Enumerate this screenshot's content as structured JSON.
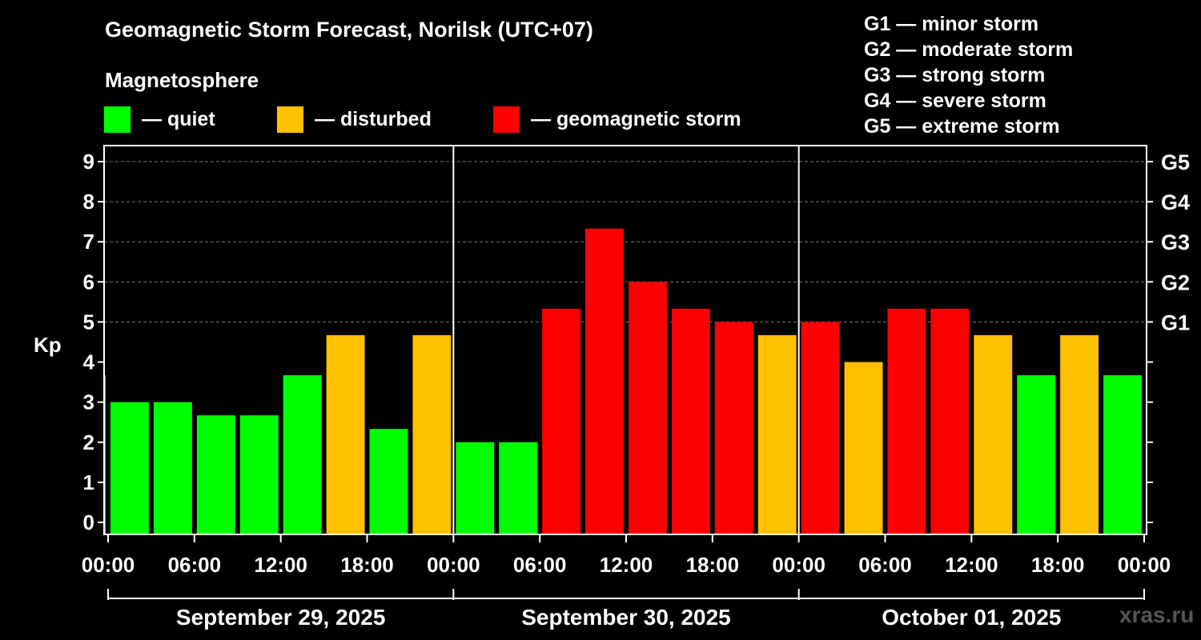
{
  "title": "Geomagnetic Storm Forecast, Norilsk (UTC+07)",
  "subtitle": "Magnetosphere",
  "legend": [
    {
      "label": "— quiet",
      "color": "#00ff00"
    },
    {
      "label": "— disturbed",
      "color": "#ffc000"
    },
    {
      "label": "— geomagnetic storm",
      "color": "#ff0000"
    }
  ],
  "g_scale": [
    "G1 — minor storm",
    "G2 — moderate storm",
    "G3 — strong storm",
    "G4 — severe storm",
    "G5 — extreme storm"
  ],
  "watermark": "xras.ru",
  "chart_data": {
    "type": "bar",
    "title": "Geomagnetic Storm Forecast, Norilsk (UTC+07)",
    "ylabel": "Kp",
    "ylim": [
      -0.3,
      9.4
    ],
    "y_ticks": [
      "0",
      "1",
      "2",
      "3",
      "4",
      "5",
      "6",
      "7",
      "8",
      "9"
    ],
    "right_axis_labels": [
      {
        "kp": 5,
        "label": "G1"
      },
      {
        "kp": 6,
        "label": "G2"
      },
      {
        "kp": 7,
        "label": "G3"
      },
      {
        "kp": 8,
        "label": "G4"
      },
      {
        "kp": 9,
        "label": "G5"
      }
    ],
    "x_range_hours": [
      0,
      72
    ],
    "x_tick_labels": [
      "00:00",
      "06:00",
      "12:00",
      "18:00",
      "00:00",
      "06:00",
      "12:00",
      "18:00",
      "00:00",
      "06:00",
      "12:00",
      "18:00",
      "00:00"
    ],
    "days": [
      "September 29, 2025",
      "September 30, 2025",
      "October 01, 2025"
    ],
    "colors": {
      "quiet": "#00ff00",
      "disturbed": "#ffc000",
      "storm": "#ff0000"
    },
    "bars": [
      {
        "hour": -1.5,
        "kp": 3.67,
        "level": "quiet"
      },
      {
        "hour": 1.5,
        "kp": 3.0,
        "level": "quiet"
      },
      {
        "hour": 4.5,
        "kp": 3.0,
        "level": "quiet"
      },
      {
        "hour": 7.5,
        "kp": 2.67,
        "level": "quiet"
      },
      {
        "hour": 10.5,
        "kp": 2.67,
        "level": "quiet"
      },
      {
        "hour": 13.5,
        "kp": 3.67,
        "level": "quiet"
      },
      {
        "hour": 16.5,
        "kp": 4.67,
        "level": "disturbed"
      },
      {
        "hour": 19.5,
        "kp": 2.33,
        "level": "quiet"
      },
      {
        "hour": 22.5,
        "kp": 4.67,
        "level": "disturbed"
      },
      {
        "hour": 25.5,
        "kp": 2.0,
        "level": "quiet"
      },
      {
        "hour": 28.5,
        "kp": 2.0,
        "level": "quiet"
      },
      {
        "hour": 31.5,
        "kp": 5.33,
        "level": "storm"
      },
      {
        "hour": 34.5,
        "kp": 7.33,
        "level": "storm"
      },
      {
        "hour": 37.5,
        "kp": 6.0,
        "level": "storm"
      },
      {
        "hour": 40.5,
        "kp": 5.33,
        "level": "storm"
      },
      {
        "hour": 43.5,
        "kp": 5.0,
        "level": "storm"
      },
      {
        "hour": 46.5,
        "kp": 4.67,
        "level": "disturbed"
      },
      {
        "hour": 49.5,
        "kp": 5.0,
        "level": "storm"
      },
      {
        "hour": 52.5,
        "kp": 4.0,
        "level": "disturbed"
      },
      {
        "hour": 55.5,
        "kp": 5.33,
        "level": "storm"
      },
      {
        "hour": 58.5,
        "kp": 5.33,
        "level": "storm"
      },
      {
        "hour": 61.5,
        "kp": 4.67,
        "level": "disturbed"
      },
      {
        "hour": 64.5,
        "kp": 3.67,
        "level": "quiet"
      },
      {
        "hour": 67.5,
        "kp": 4.67,
        "level": "disturbed"
      },
      {
        "hour": 70.5,
        "kp": 3.67,
        "level": "quiet"
      }
    ]
  }
}
